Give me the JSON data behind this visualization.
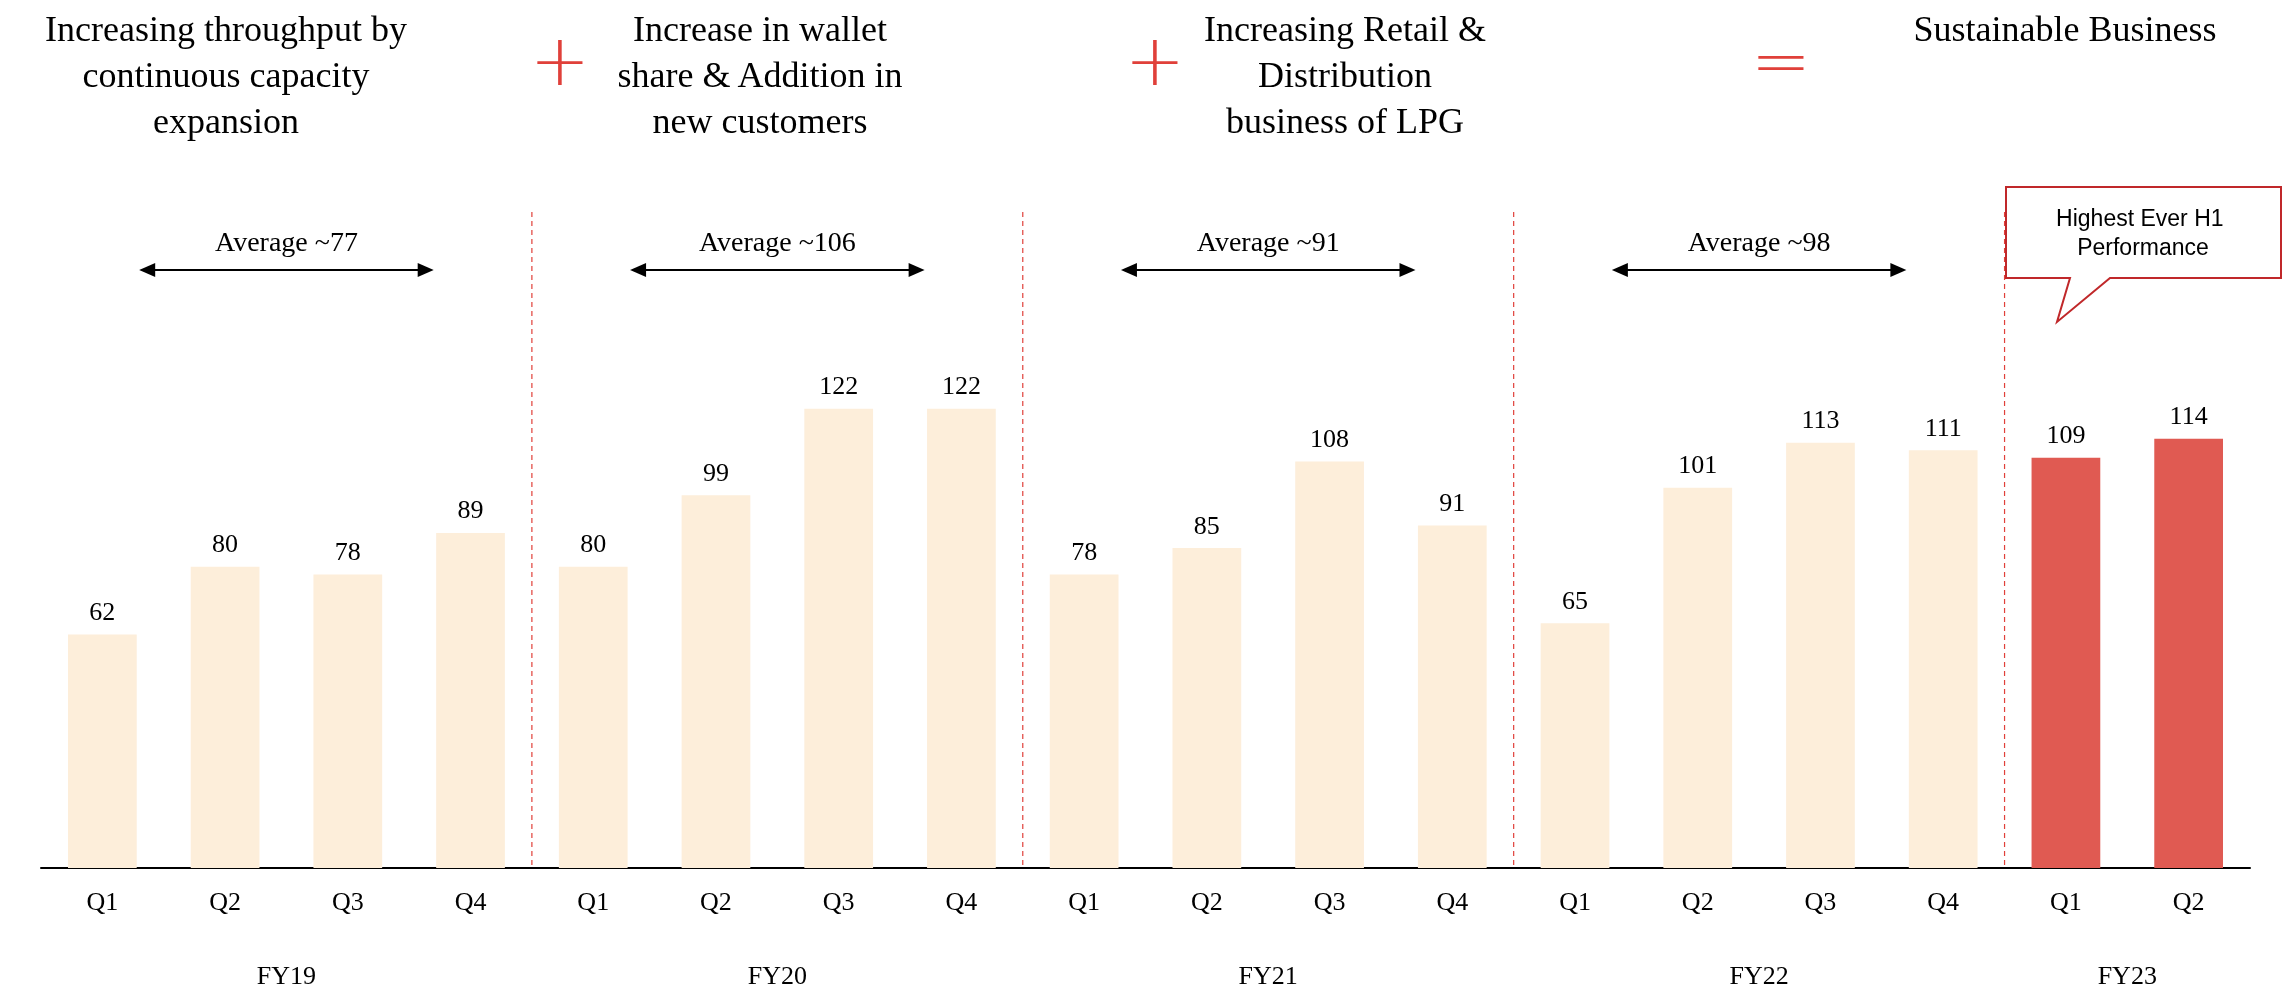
{
  "chart_data": {
    "type": "bar",
    "categories": [
      "Q1",
      "Q2",
      "Q3",
      "Q4",
      "Q1",
      "Q2",
      "Q3",
      "Q4",
      "Q1",
      "Q2",
      "Q3",
      "Q4",
      "Q1",
      "Q2",
      "Q3",
      "Q4",
      "Q1",
      "Q2"
    ],
    "values": [
      62,
      80,
      78,
      89,
      80,
      99,
      122,
      122,
      78,
      85,
      108,
      91,
      65,
      101,
      113,
      111,
      109,
      114
    ],
    "colors": [
      "#fdeeda",
      "#fdeeda",
      "#fdeeda",
      "#fdeeda",
      "#fdeeda",
      "#fdeeda",
      "#fdeeda",
      "#fdeeda",
      "#fdeeda",
      "#fdeeda",
      "#fdeeda",
      "#fdeeda",
      "#fdeeda",
      "#fdeeda",
      "#fdeeda",
      "#fdeeda",
      "#e05a52",
      "#e05a52"
    ],
    "data_labels": true,
    "annotations": [
      "Increasing throughput by continuous capacity expansion",
      "+",
      "Increase in wallet share  & Addition in new customers",
      "+",
      "Increasing Retail & Distribution business of LPG",
      "=",
      "Sustainable Business",
      "Average ~77",
      "Average ~106",
      "Average ~91",
      "Average ~98",
      "Highest Ever H1 Performance",
      "FY19",
      "FY20",
      "FY21",
      "FY22",
      "FY23"
    ]
  }
}
